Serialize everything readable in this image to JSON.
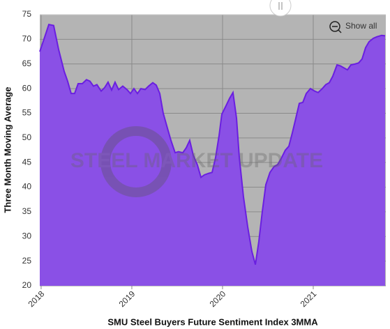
{
  "chart_data": {
    "type": "area",
    "title": "SMU Steel Buyers Future Sentiment Index 3MMA",
    "y_label": "Three Month Moving Average",
    "button": "Show all",
    "watermark": "STEEL MARKET UPDATE",
    "x": [
      2017.985,
      2018.031,
      2018.085,
      2018.138,
      2018.192,
      2018.254,
      2018.292,
      2018.331,
      2018.369,
      2018.408,
      2018.454,
      2018.5,
      2018.538,
      2018.577,
      2018.615,
      2018.662,
      2018.7,
      2018.738,
      2018.777,
      2018.815,
      2018.854,
      2018.9,
      2018.946,
      2018.985,
      2019.023,
      2019.062,
      2019.1,
      2019.146,
      2019.185,
      2019.231,
      2019.269,
      2019.308,
      2019.346,
      2019.392,
      2019.431,
      2019.477,
      2019.515,
      2019.562,
      2019.6,
      2019.638,
      2019.677,
      2019.723,
      2019.762,
      2019.8,
      2019.846,
      2019.885,
      2019.923,
      2019.962,
      2019.992,
      2020.038,
      2020.077,
      2020.115,
      2020.154,
      2020.185,
      2020.231,
      2020.277,
      2020.323,
      2020.362,
      2020.4,
      2020.438,
      2020.477,
      2020.523,
      2020.569,
      2020.608,
      2020.646,
      2020.692,
      2020.731,
      2020.769,
      2020.808,
      2020.846,
      2020.885,
      2020.923,
      2020.969,
      2021.015,
      2021.054,
      2021.1,
      2021.138,
      2021.177,
      2021.215,
      2021.262,
      2021.3,
      2021.338,
      2021.377,
      2021.415,
      2021.462,
      2021.5,
      2021.538,
      2021.577,
      2021.615,
      2021.662,
      2021.7,
      2021.754,
      2021.792
    ],
    "series": [
      {
        "name": "SMU Steel Buyers Future Sentiment Index 3MMA",
        "color": "#6a1fe0",
        "fill": "#8a50e6",
        "values": [
          67.5,
          70,
          73,
          72.8,
          68,
          63.5,
          61.5,
          59,
          59,
          61,
          61,
          61.8,
          61.5,
          60.5,
          60.8,
          59.5,
          60.2,
          61.3,
          59.7,
          61.3,
          59.8,
          60.5,
          59.8,
          59,
          60,
          59,
          60,
          59.8,
          60.5,
          61.2,
          60.7,
          59,
          55,
          52,
          49.5,
          47,
          47.2,
          47,
          48,
          49.5,
          46.5,
          44.5,
          42,
          42.5,
          42.8,
          43,
          46,
          50.5,
          54.8,
          56.5,
          58,
          59.2,
          54,
          46,
          38,
          32,
          27,
          24.3,
          29,
          35,
          40.5,
          43,
          44.2,
          44.6,
          45.8,
          47.5,
          48.3,
          51,
          54,
          57,
          57.2,
          59,
          60,
          59.5,
          59.2,
          60,
          60.8,
          61.2,
          62.5,
          64.8,
          64.6,
          64.2,
          63.8,
          64.8,
          65,
          65.2,
          66,
          68.3,
          69.5,
          70.2,
          70.5,
          70.8,
          70.7
        ]
      }
    ],
    "xlim": [
      2017.985,
      2021.8
    ],
    "xticks": [
      2018,
      2019,
      2020,
      2021
    ],
    "ylim": [
      20,
      75
    ],
    "yticks": [
      20,
      25,
      30,
      35,
      40,
      45,
      50,
      55,
      60,
      65,
      70,
      75
    ],
    "grid": true
  }
}
